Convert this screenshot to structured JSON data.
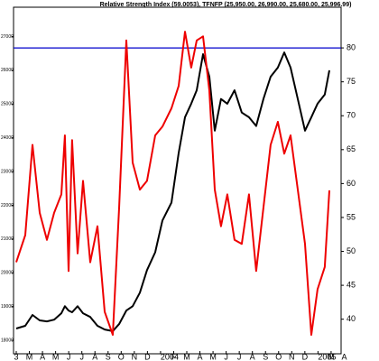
{
  "chart_data": {
    "type": "line",
    "title": "Relative Strength Index (59.0053), TFNFP (25,950.00, 26,990.00, 25,680.00, 25,996.99)",
    "x": [
      0,
      0.69,
      1.24,
      1.79,
      2.34,
      2.89,
      3.44,
      3.71,
      3.99,
      4.26,
      4.68,
      5.09,
      5.64,
      6.19,
      6.74,
      7.36,
      7.84,
      8.39,
      8.87,
      9.42,
      9.97,
      10.59,
      11.14,
      11.83,
      12.38,
      12.86,
      13.34,
      13.76,
      14.24,
      14.72,
      15.13,
      15.61,
      16.09,
      16.64,
      17.19,
      17.74,
      18.29,
      18.84,
      19.39,
      19.94,
      20.43,
      20.91,
      21.46,
      22.01,
      22.49,
      22.97,
      23.52,
      23.87
    ],
    "series": [
      {
        "name": "TFNFP",
        "color": "#000000",
        "values": [
          18350,
          18430,
          18750,
          18590,
          18560,
          18610,
          18800,
          19010,
          18880,
          18830,
          19010,
          18800,
          18690,
          18430,
          18320,
          18270,
          18480,
          18880,
          19010,
          19410,
          20080,
          20610,
          21550,
          22080,
          23550,
          24610,
          25010,
          25410,
          26480,
          25810,
          24210,
          25150,
          25010,
          25410,
          24750,
          24610,
          24350,
          25150,
          25810,
          26080,
          26530,
          26080,
          25150,
          24210,
          24610,
          25010,
          25280,
          26000
        ]
      },
      {
        "name": "Relative Strength Index",
        "color": "#ee0000",
        "axis": "y2",
        "values": [
          48.4,
          52.4,
          65.7,
          55.7,
          51.7,
          55.7,
          58.4,
          67.1,
          47.1,
          66.4,
          49.7,
          60.4,
          48.4,
          53.7,
          41.1,
          37.7,
          56.4,
          81.1,
          63.1,
          59.1,
          60.4,
          67.1,
          68.4,
          71.1,
          74.4,
          82.4,
          77.1,
          81.1,
          81.7,
          73.7,
          59.1,
          53.7,
          58.4,
          51.7,
          51.1,
          58.4,
          47.1,
          56.4,
          65.7,
          69.1,
          64.4,
          67.1,
          59.1,
          51.1,
          37.7,
          44.4,
          47.7,
          59.0
        ]
      }
    ],
    "ref_line": 80,
    "ref_color": "#0000cc",
    "xlim": [
      0,
      26
    ],
    "xticks": [
      {
        "value": 0,
        "label": "3"
      },
      {
        "value": 1,
        "label": "M"
      },
      {
        "value": 2,
        "label": "A"
      },
      {
        "value": 3,
        "label": "M"
      },
      {
        "value": 4,
        "label": "J"
      },
      {
        "value": 5,
        "label": "J"
      },
      {
        "value": 6,
        "label": "A"
      },
      {
        "value": 7,
        "label": "S"
      },
      {
        "value": 8,
        "label": "O"
      },
      {
        "value": 9,
        "label": "N"
      },
      {
        "value": 10,
        "label": "D"
      },
      {
        "value": 11,
        "label": "2004"
      },
      {
        "value": 12,
        "label": "F"
      },
      {
        "value": 13,
        "label": "M"
      },
      {
        "value": 14,
        "label": "A"
      },
      {
        "value": 15,
        "label": "M"
      },
      {
        "value": 16,
        "label": "J"
      },
      {
        "value": 17,
        "label": "J"
      },
      {
        "value": 18,
        "label": "A"
      },
      {
        "value": 19,
        "label": "S"
      },
      {
        "value": 20,
        "label": "O"
      },
      {
        "value": 21,
        "label": "N"
      },
      {
        "value": 22,
        "label": "D"
      },
      {
        "value": 23,
        "label": "2005"
      },
      {
        "value": 24,
        "label": "M"
      },
      {
        "value": 25,
        "label": "A"
      }
    ],
    "ylim": [
      17600,
      27870
    ],
    "yticks": [
      18000,
      19000,
      20000,
      21000,
      22000,
      23000,
      24000,
      25000,
      26000,
      27000
    ],
    "y2lim": [
      34.9,
      86
    ],
    "y2ticks": [
      40,
      45,
      50,
      55,
      60,
      65,
      70,
      75,
      80
    ]
  }
}
